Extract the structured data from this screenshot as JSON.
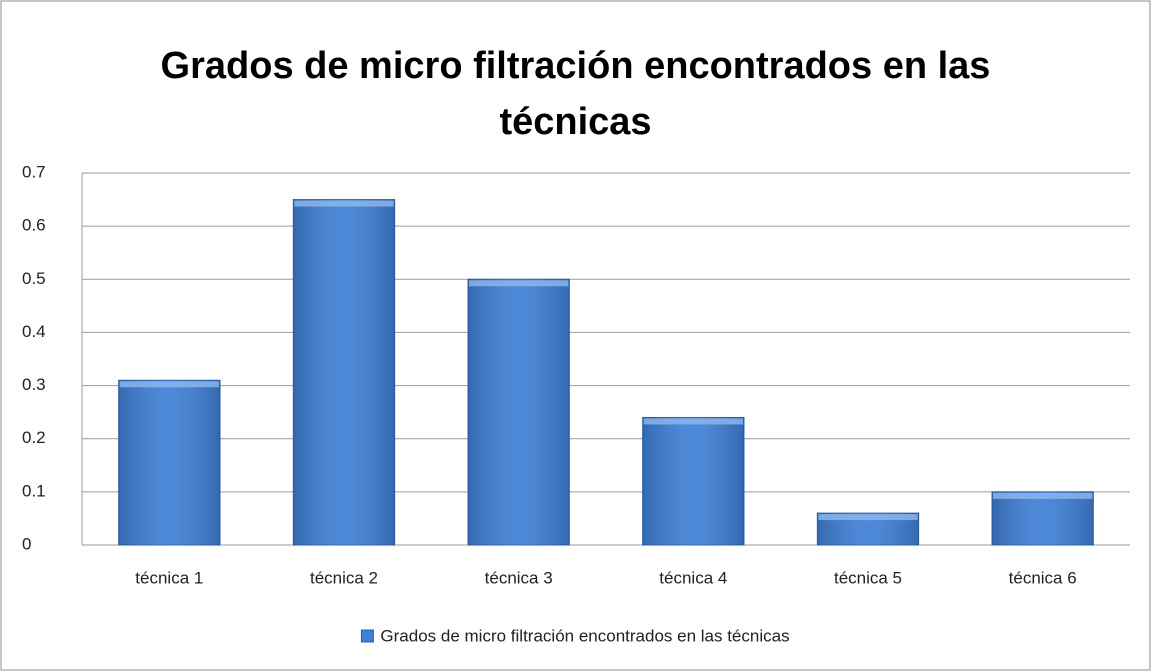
{
  "chart_data": {
    "type": "bar",
    "title": "Grados de micro filtración encontrados en las técnicas",
    "categories": [
      "técnica 1",
      "técnica 2",
      "técnica 3",
      "técnica 4",
      "técnica 5",
      "técnica 6"
    ],
    "series": [
      {
        "name": "Grados de micro filtración encontrados en las técnicas",
        "color": "#3f7fd6",
        "values": [
          0.31,
          0.65,
          0.5,
          0.24,
          0.06,
          0.1
        ]
      }
    ],
    "ylim": [
      0,
      0.7
    ],
    "yticks": [
      0,
      0.1,
      0.2,
      0.3,
      0.4,
      0.5,
      0.6,
      0.7
    ],
    "grid": true,
    "legend": "bottom"
  }
}
